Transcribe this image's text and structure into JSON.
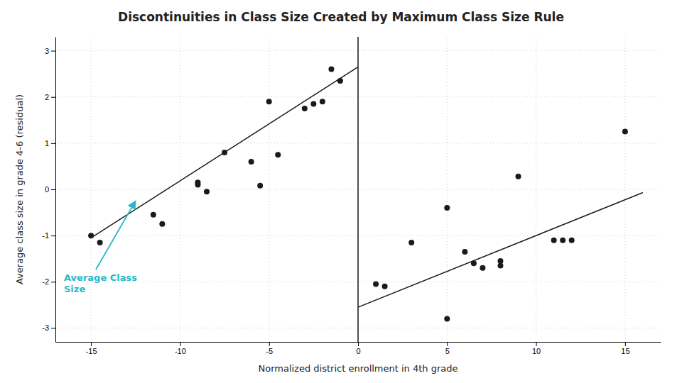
{
  "chart_data": {
    "type": "scatter",
    "title": "Discontinuities in Class Size Created by Maximum Class Size Rule",
    "x_label": "Normalized district enrollment in 4th grade",
    "y_label": "Average class size in grade 4-6 (residual)",
    "xlim": [
      -17,
      17
    ],
    "ylim": [
      -3.3,
      3.3
    ],
    "xticks": [
      -15,
      -10,
      -5,
      0,
      5,
      10,
      15
    ],
    "yticks": [
      -3,
      -2,
      -1,
      0,
      1,
      2,
      3
    ],
    "grid": true,
    "series": [
      {
        "type": "scatter",
        "color": "#1a1a1a",
        "x": [
          -15,
          -14.5,
          -11.5,
          -11,
          -9,
          -9,
          -8.5,
          -7.5,
          -6,
          -5.5,
          -5,
          -4.5,
          -3,
          -2.5,
          -2,
          -1.5,
          -1
        ],
        "values": [
          -1.0,
          -1.15,
          -0.55,
          -0.75,
          0.1,
          0.15,
          -0.05,
          0.8,
          0.6,
          0.08,
          1.9,
          0.75,
          1.75,
          1.85,
          1.9,
          2.6,
          2.35
        ]
      },
      {
        "type": "scatter",
        "color": "#1a1a1a",
        "x": [
          1,
          1.5,
          3,
          5,
          5,
          6,
          6.5,
          7,
          8,
          8,
          9,
          11,
          11.5,
          12,
          15
        ],
        "values": [
          -2.05,
          -2.1,
          -1.15,
          -0.4,
          -2.8,
          -1.35,
          -1.6,
          -1.7,
          -1.55,
          -1.65,
          0.28,
          -1.1,
          -1.1,
          -1.1,
          1.25
        ]
      },
      {
        "type": "line",
        "color": "#1a1a1a",
        "x": [
          -15,
          0
        ],
        "values": [
          -1.05,
          2.65
        ]
      },
      {
        "type": "line",
        "color": "#1a1a1a",
        "x": [
          0,
          16
        ],
        "values": [
          -2.55,
          -0.07
        ]
      }
    ],
    "vlines": [
      {
        "x": 0,
        "color": "#1a1a1a"
      }
    ],
    "annotations": [
      {
        "text": "Average Class\nSize",
        "x": -12.5,
        "y": -0.25,
        "color": "#2ab8c8"
      }
    ]
  }
}
